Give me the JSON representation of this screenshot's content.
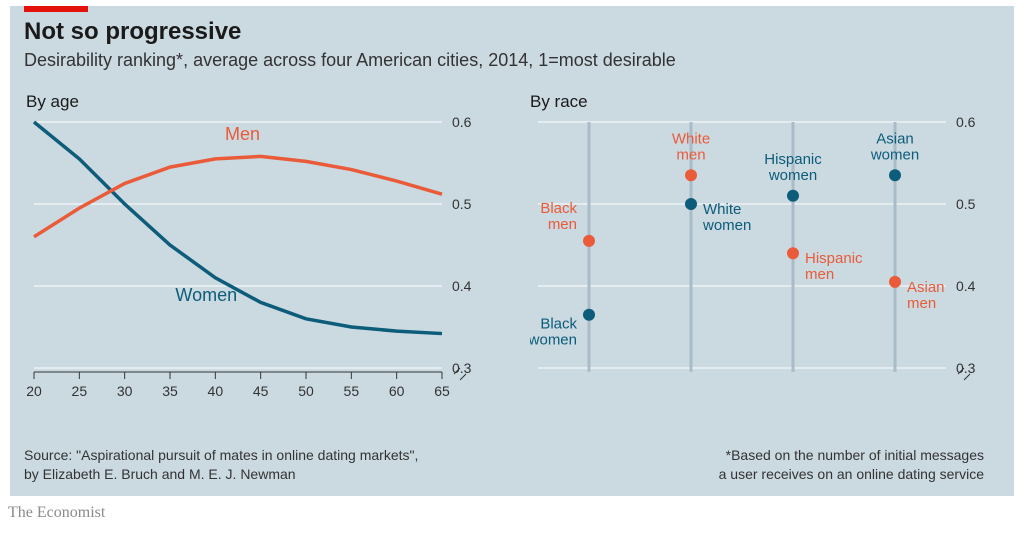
{
  "title": "Not so progressive",
  "subtitle": "Desirability ranking*, average across four American cities, 2014, 1=most desirable",
  "credit": "The Economist",
  "source_line1": "Source: \"Aspirational pursuit of mates in online dating markets\",",
  "source_line2": "by Elizabeth E. Bruch and M. E. J. Newman",
  "footnote_line1": "*Based on the number of initial messages",
  "footnote_line2": "a user receives on an online dating service",
  "colors": {
    "panel_bg": "#cbd9e1",
    "accent_red": "#e3120b",
    "men": "#ea5b39",
    "women": "#0c5c7a",
    "grid": "#ffffff",
    "vline": "#a9bcc8",
    "text": "#1a1a1a"
  },
  "left_chart": {
    "type": "line",
    "title": "By age",
    "xlim": [
      20,
      65
    ],
    "xticks": [
      20,
      25,
      30,
      35,
      40,
      45,
      50,
      55,
      60,
      65
    ],
    "ylim": [
      0.3,
      0.6
    ],
    "yticks": [
      0.3,
      0.4,
      0.5,
      0.6
    ],
    "yticks_labels": [
      "0.3",
      "0.4",
      "0.5",
      "0.6"
    ],
    "line_width": 3.5,
    "series": {
      "men": {
        "label": "Men",
        "color": "#ea5b39",
        "x": [
          20,
          25,
          30,
          35,
          40,
          45,
          50,
          55,
          60,
          65
        ],
        "y": [
          0.46,
          0.495,
          0.525,
          0.545,
          0.555,
          0.558,
          0.552,
          0.542,
          0.528,
          0.512
        ]
      },
      "women": {
        "label": "Women",
        "color": "#0c5c7a",
        "x": [
          20,
          25,
          30,
          35,
          40,
          45,
          50,
          55,
          60,
          65
        ],
        "y": [
          0.6,
          0.555,
          0.5,
          0.45,
          0.41,
          0.38,
          0.36,
          0.35,
          0.345,
          0.342
        ]
      }
    },
    "series_label_pos": {
      "men": {
        "x": 43,
        "y": 0.578
      },
      "women": {
        "x": 39,
        "y": 0.382
      }
    }
  },
  "right_chart": {
    "type": "dot-strip",
    "title": "By race",
    "ylim": [
      0.3,
      0.6
    ],
    "yticks": [
      0.3,
      0.4,
      0.5,
      0.6
    ],
    "yticks_labels": [
      "0.3",
      "0.4",
      "0.5",
      "0.6"
    ],
    "categories": [
      "Black",
      "White",
      "Hispanic",
      "Asian"
    ],
    "vline_color": "#a9bcc8",
    "dot_radius": 6,
    "points": [
      {
        "cat": 0,
        "group": "men",
        "y": 0.455,
        "label": "Black men",
        "label_side": "left",
        "label_dy": -20
      },
      {
        "cat": 0,
        "group": "women",
        "y": 0.365,
        "label": "Black women",
        "label_side": "left",
        "label_dy": 22
      },
      {
        "cat": 1,
        "group": "men",
        "y": 0.535,
        "label": "White men",
        "label_side": "center",
        "label_dy": -16
      },
      {
        "cat": 1,
        "group": "women",
        "y": 0.5,
        "label": "White women",
        "label_side": "right",
        "label_dy": 18
      },
      {
        "cat": 2,
        "group": "women",
        "y": 0.51,
        "label": "Hispanic women",
        "label_side": "center",
        "label_dy": -16
      },
      {
        "cat": 2,
        "group": "men",
        "y": 0.44,
        "label": "Hispanic men",
        "label_side": "right",
        "label_dy": 18
      },
      {
        "cat": 3,
        "group": "women",
        "y": 0.535,
        "label": "Asian women",
        "label_side": "center",
        "label_dy": -16
      },
      {
        "cat": 3,
        "group": "men",
        "y": 0.405,
        "label": "Asian men",
        "label_side": "right",
        "label_dy": 18
      }
    ]
  }
}
